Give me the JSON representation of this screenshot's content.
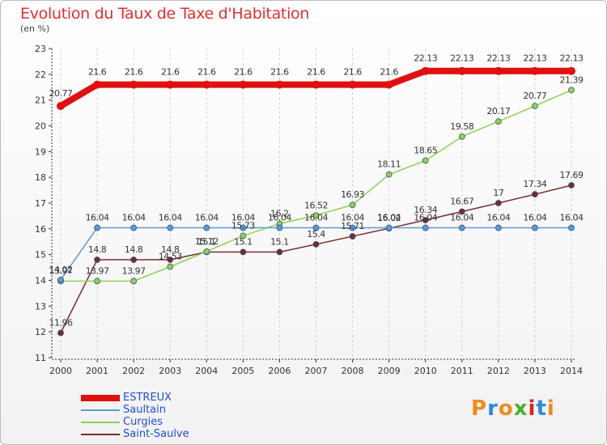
{
  "header": {
    "title": "Evolution du Taux de Taxe d'Habitation",
    "subtitle": "(en %)"
  },
  "logo": {
    "text": "Proxiti",
    "colors": [
      "#f08a1c",
      "#2a8ae0",
      "#f08a1c",
      "#4ab030",
      "#e02020",
      "#2a8ae0",
      "#f08a1c"
    ]
  },
  "chart_data": {
    "type": "line",
    "title": "Evolution du Taux de Taxe d'Habitation",
    "ylabel": "(en %)",
    "x": [
      "2000",
      "2001",
      "2002",
      "2003",
      "2004",
      "2005",
      "2006",
      "2007",
      "2008",
      "2009",
      "2010",
      "2011",
      "2012",
      "2013",
      "2014"
    ],
    "y_ticks": [
      "11",
      "12",
      "13",
      "14",
      "15",
      "16",
      "17",
      "18",
      "19",
      "20",
      "21",
      "22",
      "23"
    ],
    "ylim": [
      11,
      23
    ],
    "grid": "vertical dashed",
    "legend_position": "bottom-left",
    "series": [
      {
        "name": "ESTREUX",
        "color": "#e01010",
        "width": 8,
        "marker_r": 5,
        "values": [
          20.77,
          21.6,
          21.6,
          21.6,
          21.6,
          21.6,
          21.6,
          21.6,
          21.6,
          21.6,
          22.13,
          22.13,
          22.13,
          22.13,
          22.13
        ],
        "labels": [
          "20.77",
          "21.6",
          "21.6",
          "21.6",
          "21.6",
          "21.6",
          "21.6",
          "21.6",
          "21.6",
          "21.6",
          "22.13",
          "22.13",
          "22.13",
          "22.13",
          "22.13"
        ]
      },
      {
        "name": "Saultain",
        "color": "#5b9bd5",
        "width": 1.5,
        "marker_r": 3.5,
        "values": [
          14.02,
          16.04,
          16.04,
          16.04,
          16.04,
          16.04,
          16.04,
          16.04,
          16.04,
          16.04,
          16.04,
          16.04,
          16.04,
          16.04,
          16.04
        ],
        "labels": [
          "14.02",
          "16.04",
          "16.04",
          "16.04",
          "16.04",
          "16.04",
          "16.04",
          "16.04",
          "16.04",
          "16.04",
          "16.04",
          "16.04",
          "16.04",
          "16.04",
          "16.04"
        ]
      },
      {
        "name": "Curgies",
        "color": "#8fd14f",
        "width": 1.5,
        "marker_r": 3.5,
        "values": [
          13.97,
          13.97,
          13.97,
          14.53,
          15.12,
          15.73,
          16.2,
          16.52,
          16.93,
          18.11,
          18.65,
          19.58,
          20.17,
          20.77,
          21.39
        ],
        "labels": [
          "13.97",
          "13.97",
          "13.97",
          "14.53",
          "15.12",
          "15.73",
          "16.2",
          "16.52",
          "16.93",
          "18.11",
          "18.65",
          "19.58",
          "20.17",
          "20.77",
          "21.39"
        ]
      },
      {
        "name": "Saint-Saulve",
        "color": "#7a2a2a",
        "width": 1.5,
        "marker_r": 3.5,
        "values": [
          11.96,
          14.8,
          14.8,
          14.8,
          15.1,
          15.1,
          15.1,
          15.4,
          15.71,
          16.02,
          16.34,
          16.67,
          17.0,
          17.34,
          17.69
        ],
        "labels": [
          "11.96",
          "14.8",
          "14.8",
          "14.8",
          "15.1",
          "15.1",
          "15.1",
          "15.4",
          "15.71",
          "16.02",
          "16.34",
          "16.67",
          "17",
          "17.34",
          "17.69"
        ]
      }
    ]
  }
}
